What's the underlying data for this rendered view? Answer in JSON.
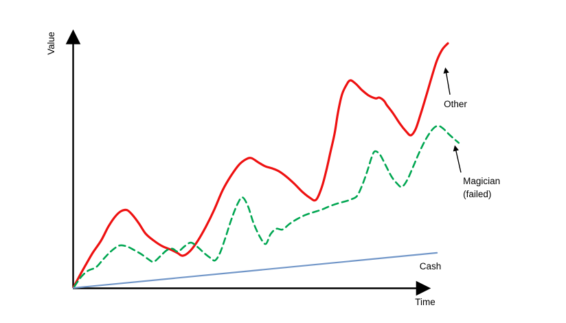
{
  "chart_data": {
    "type": "line",
    "title": "",
    "xlabel": "Time",
    "ylabel": "Value",
    "axes": {
      "x_range": [
        0,
        100
      ],
      "y_range": [
        0,
        100
      ],
      "ticks": "none",
      "grid": false,
      "style": "sketch axes with arrowheads"
    },
    "legend": "none - labels are inline annotations",
    "series": [
      {
        "name": "Other",
        "color": "#ee1111",
        "line_style": "solid",
        "points": [
          [
            0.2,
            0.3
          ],
          [
            1.7,
            4.2
          ],
          [
            3.6,
            8.9
          ],
          [
            5.5,
            13.4
          ],
          [
            7.8,
            18.1
          ],
          [
            9.8,
            23.4
          ],
          [
            11.7,
            27.3
          ],
          [
            13.4,
            29.4
          ],
          [
            15.0,
            29.7
          ],
          [
            16.5,
            27.8
          ],
          [
            18.2,
            24.7
          ],
          [
            20.1,
            20.7
          ],
          [
            22.3,
            18.1
          ],
          [
            24.6,
            16.0
          ],
          [
            26.9,
            14.7
          ],
          [
            28.8,
            13.4
          ],
          [
            30.3,
            12.3
          ],
          [
            32.2,
            13.9
          ],
          [
            34.5,
            18.1
          ],
          [
            36.7,
            23.4
          ],
          [
            39.0,
            29.9
          ],
          [
            41.3,
            37.3
          ],
          [
            43.6,
            42.8
          ],
          [
            45.8,
            47.0
          ],
          [
            47.7,
            49.1
          ],
          [
            49.2,
            49.6
          ],
          [
            51.1,
            48.0
          ],
          [
            53.0,
            46.5
          ],
          [
            54.9,
            45.7
          ],
          [
            56.8,
            44.6
          ],
          [
            58.9,
            42.5
          ],
          [
            61.0,
            39.9
          ],
          [
            63.3,
            36.7
          ],
          [
            65.2,
            34.6
          ],
          [
            67.0,
            33.6
          ],
          [
            68.6,
            38.3
          ],
          [
            69.9,
            44.9
          ],
          [
            71.0,
            51.7
          ],
          [
            72.2,
            59.1
          ],
          [
            73.1,
            66.9
          ],
          [
            74.2,
            73.8
          ],
          [
            75.4,
            77.4
          ],
          [
            76.5,
            79.3
          ],
          [
            78.0,
            78.0
          ],
          [
            79.7,
            75.6
          ],
          [
            81.6,
            73.5
          ],
          [
            83.5,
            72.4
          ],
          [
            84.5,
            72.7
          ],
          [
            85.8,
            71.5
          ],
          [
            86.6,
            69.8
          ],
          [
            88.3,
            66.7
          ],
          [
            90.2,
            62.7
          ],
          [
            91.9,
            59.8
          ],
          [
            93.2,
            58.3
          ],
          [
            94.5,
            60.6
          ],
          [
            95.8,
            65.9
          ],
          [
            97.3,
            72.7
          ],
          [
            98.9,
            80.3
          ],
          [
            100.4,
            86.9
          ],
          [
            101.9,
            91.1
          ],
          [
            103.4,
            93.4
          ]
        ]
      },
      {
        "name": "Magician (failed)",
        "color": "#00a651",
        "line_style": "dashed",
        "points": [
          [
            0.4,
            0.5
          ],
          [
            2.3,
            4.2
          ],
          [
            4.2,
            6.6
          ],
          [
            6.4,
            7.9
          ],
          [
            8.3,
            10.8
          ],
          [
            10.2,
            13.6
          ],
          [
            12.1,
            15.7
          ],
          [
            13.4,
            16.3
          ],
          [
            15.2,
            15.7
          ],
          [
            17.0,
            14.4
          ],
          [
            18.9,
            12.9
          ],
          [
            20.8,
            11.0
          ],
          [
            22.3,
            10.0
          ],
          [
            24.1,
            12.1
          ],
          [
            25.9,
            14.4
          ],
          [
            27.5,
            15.0
          ],
          [
            29.0,
            13.9
          ],
          [
            30.9,
            16.0
          ],
          [
            32.6,
            17.3
          ],
          [
            34.5,
            15.5
          ],
          [
            36.4,
            13.1
          ],
          [
            38.1,
            11.3
          ],
          [
            39.2,
            10.5
          ],
          [
            40.5,
            13.1
          ],
          [
            42.0,
            18.9
          ],
          [
            43.8,
            26.5
          ],
          [
            45.5,
            32.3
          ],
          [
            46.8,
            34.6
          ],
          [
            48.3,
            31.2
          ],
          [
            49.8,
            24.9
          ],
          [
            51.7,
            19.2
          ],
          [
            53.2,
            16.8
          ],
          [
            54.5,
            20.5
          ],
          [
            56.1,
            22.6
          ],
          [
            57.8,
            22.3
          ],
          [
            59.7,
            24.4
          ],
          [
            61.7,
            26.2
          ],
          [
            64.0,
            27.8
          ],
          [
            66.3,
            28.9
          ],
          [
            68.6,
            29.9
          ],
          [
            70.8,
            31.2
          ],
          [
            73.1,
            32.3
          ],
          [
            75.2,
            33.1
          ],
          [
            76.9,
            33.9
          ],
          [
            78.4,
            35.2
          ],
          [
            79.9,
            39.6
          ],
          [
            81.3,
            45.1
          ],
          [
            82.4,
            49.9
          ],
          [
            83.3,
            52.2
          ],
          [
            84.7,
            50.9
          ],
          [
            86.2,
            47.0
          ],
          [
            87.9,
            42.5
          ],
          [
            89.4,
            39.9
          ],
          [
            90.7,
            38.6
          ],
          [
            92.2,
            41.2
          ],
          [
            93.8,
            46.2
          ],
          [
            95.6,
            52.0
          ],
          [
            97.5,
            57.2
          ],
          [
            99.4,
            60.9
          ],
          [
            100.8,
            61.9
          ],
          [
            102.1,
            60.9
          ],
          [
            103.4,
            59.1
          ],
          [
            104.9,
            57.2
          ],
          [
            106.4,
            55.4
          ]
        ]
      },
      {
        "name": "Cash",
        "color": "#7196c8",
        "line_style": "solid",
        "points": [
          [
            0.2,
            0.0
          ],
          [
            100.4,
            13.4
          ]
        ]
      }
    ],
    "annotations": [
      {
        "label": "Other",
        "lines": [
          "Other"
        ],
        "text_xy": [
          102.3,
          69.0
        ],
        "arrow_from": [
          104.0,
          73.8
        ],
        "arrow_to": [
          102.7,
          84.3
        ]
      },
      {
        "label": "Magician (failed)",
        "lines": [
          "Magician",
          "(failed)"
        ],
        "text_xy": [
          107.6,
          39.6
        ],
        "text_xy2": [
          107.6,
          34.6
        ],
        "arrow_from": [
          107.0,
          44.1
        ],
        "arrow_to": [
          105.3,
          54.6
        ]
      },
      {
        "label": "Cash",
        "lines": [
          "Cash"
        ],
        "text_xy": [
          95.6,
          7.1
        ]
      }
    ]
  }
}
